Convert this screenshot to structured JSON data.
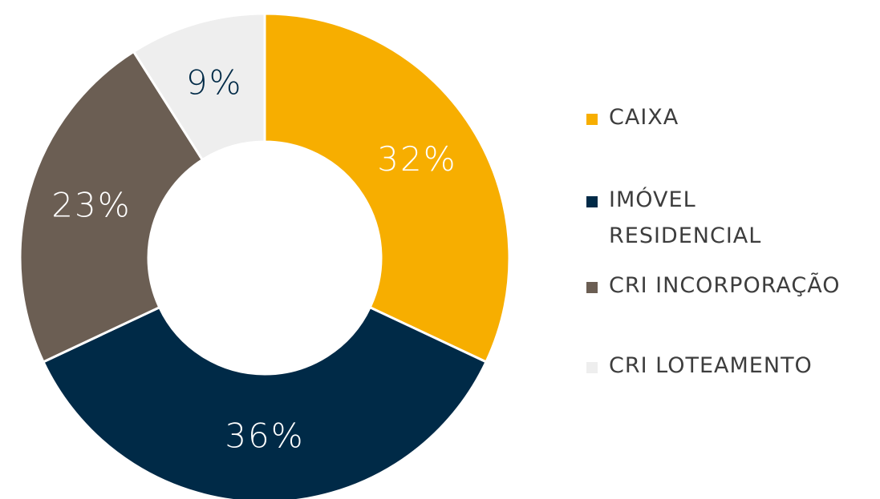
{
  "chart_data": {
    "type": "donut",
    "categories": [
      "CAIXA",
      "IMÓVEL RESIDENCIAL",
      "CRI INCORPORAÇÃO",
      "CRI LOTEAMENTO"
    ],
    "values": [
      32,
      36,
      23,
      9
    ],
    "value_labels": [
      "32%",
      "36%",
      "23%",
      "9%"
    ],
    "colors": [
      "#f7ae00",
      "#002a47",
      "#6b5e53",
      "#eeeeee"
    ],
    "label_colors": [
      "#ffffff",
      "#ffffff",
      "#ffffff",
      "#002a47"
    ],
    "legend": "right"
  }
}
